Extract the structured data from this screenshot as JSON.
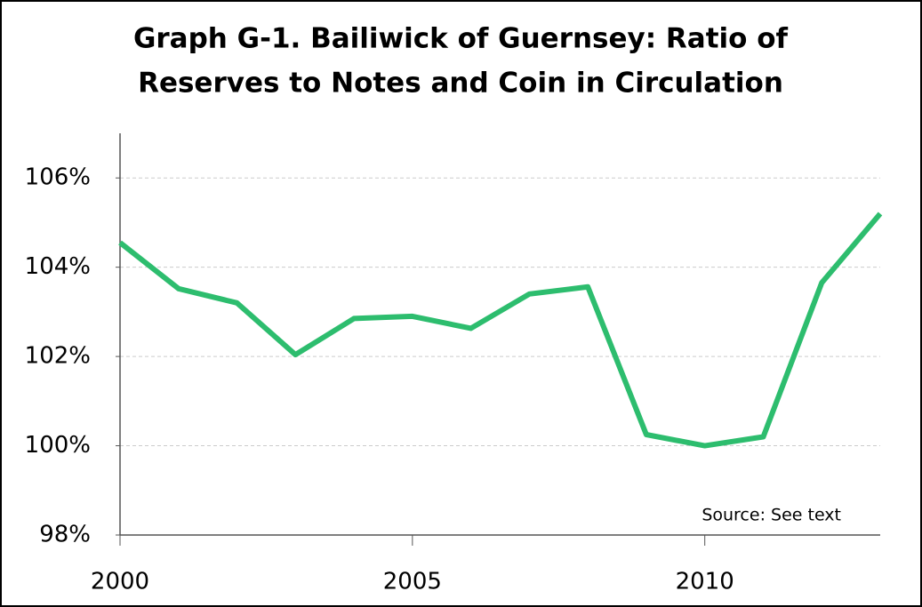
{
  "chart_data": {
    "type": "line",
    "title": [
      "Graph G-1. Bailiwick of Guernsey: Ratio of",
      "Reserves to Notes and Coin in Circulation"
    ],
    "annotation": "Source: See text",
    "x": [
      2000,
      2001,
      2002,
      2003,
      2004,
      2005,
      2006,
      2007,
      2008,
      2009,
      2010,
      2011,
      2012,
      2013
    ],
    "series": [
      {
        "name": "Ratio",
        "color": "#2dbd6e",
        "values": [
          104.55,
          103.52,
          103.2,
          102.04,
          102.85,
          102.9,
          102.63,
          103.4,
          103.56,
          100.25,
          100.0,
          100.2,
          103.65,
          105.2
        ]
      }
    ],
    "xlim": [
      2000,
      2013
    ],
    "xticks": [
      2000,
      2005,
      2010
    ],
    "ylim": [
      98,
      107
    ],
    "yticks": [
      {
        "value": 98,
        "label": "98%"
      },
      {
        "value": 100,
        "label": "100%"
      },
      {
        "value": 102,
        "label": "102%"
      },
      {
        "value": 104,
        "label": "104%"
      },
      {
        "value": 106,
        "label": "106%"
      }
    ],
    "grid": true
  }
}
